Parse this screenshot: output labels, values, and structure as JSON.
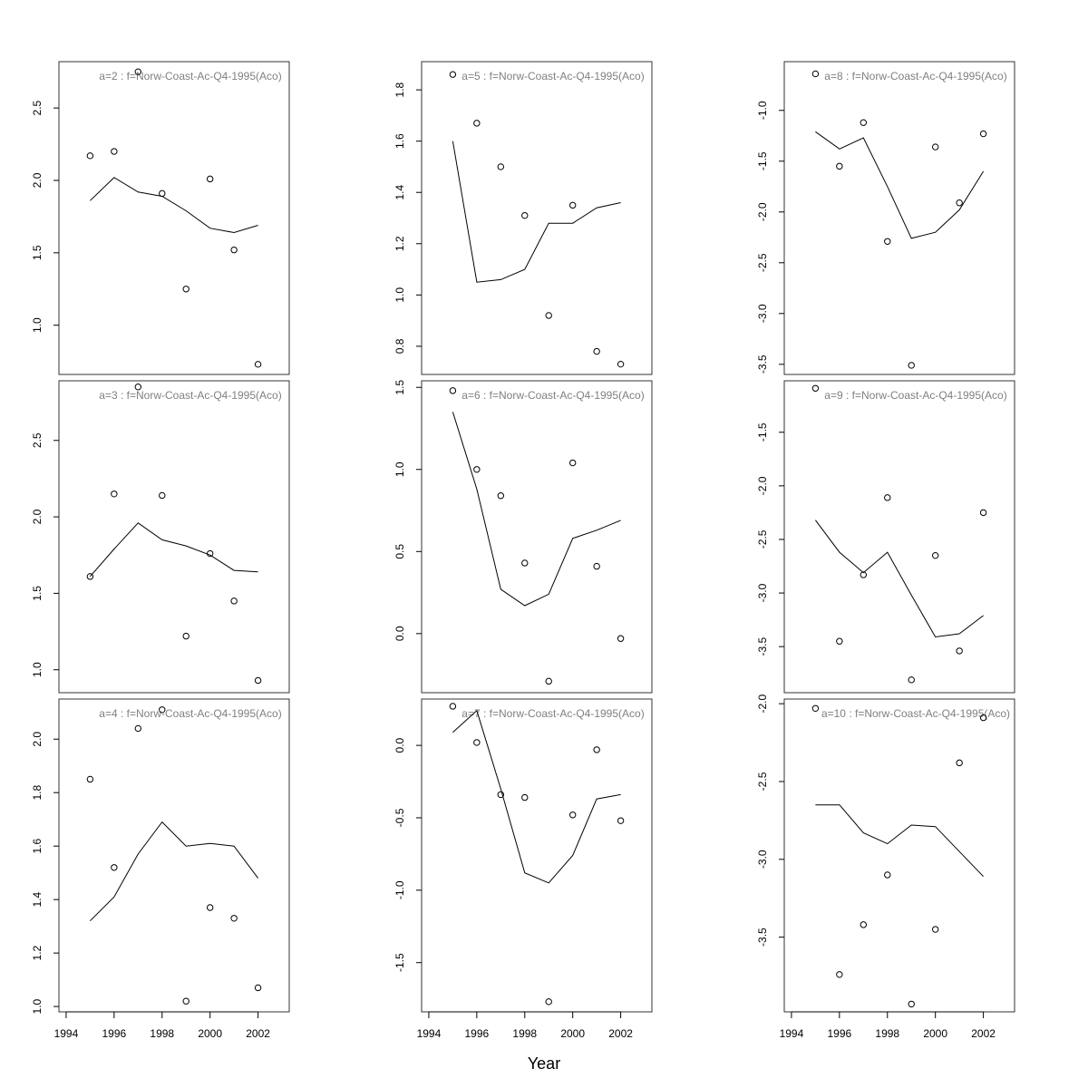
{
  "chart_data": {
    "type": "scatter",
    "layout": "3x3 panels, columns share x axis, panels in a column stacked without gaps",
    "xlabel": "Year",
    "x_ticks": [
      1994,
      1996,
      1998,
      2000,
      2002
    ],
    "x": [
      1995,
      1996,
      1997,
      1998,
      1999,
      2000,
      2001,
      2002
    ],
    "panels": [
      {
        "label": "a=2  :  f=Norw-Coast-Ac-Q4-1995(Aco)",
        "ylim": [
          0.66,
          2.82
        ],
        "y_ticks": [
          "1.0",
          "1.5",
          "2.0",
          "2.5"
        ],
        "points": [
          2.17,
          2.2,
          2.75,
          1.91,
          1.25,
          2.01,
          1.52,
          0.73
        ],
        "fitted": [
          1.86,
          2.02,
          1.92,
          1.89,
          1.79,
          1.67,
          1.64,
          1.69
        ]
      },
      {
        "label": "a=3  :  f=Norw-Coast-Ac-Q4-1995(Aco)",
        "ylim": [
          0.85,
          2.89
        ],
        "y_ticks": [
          "1.0",
          "1.5",
          "2.0",
          "2.5"
        ],
        "points": [
          1.61,
          2.15,
          2.85,
          2.14,
          1.22,
          1.76,
          1.45,
          0.93
        ],
        "fitted": [
          1.61,
          1.79,
          1.96,
          1.85,
          1.81,
          1.75,
          1.65,
          1.64
        ]
      },
      {
        "label": "a=4  :  f=Norw-Coast-Ac-Q4-1995(Aco)",
        "ylim": [
          0.98,
          2.15
        ],
        "y_ticks": [
          "1.0",
          "1.2",
          "1.4",
          "1.6",
          "1.8",
          "2.0"
        ],
        "points": [
          1.85,
          1.52,
          2.04,
          2.11,
          1.02,
          1.37,
          1.33,
          1.07
        ],
        "fitted": [
          1.32,
          1.41,
          1.57,
          1.69,
          1.6,
          1.61,
          1.6,
          1.48
        ]
      },
      {
        "label": "a=5  :  f=Norw-Coast-Ac-Q4-1995(Aco)",
        "ylim": [
          0.69,
          1.91
        ],
        "y_ticks": [
          "0.8",
          "1.0",
          "1.2",
          "1.4",
          "1.6",
          "1.8"
        ],
        "points": [
          1.86,
          1.67,
          1.5,
          1.31,
          0.92,
          1.35,
          0.78,
          0.73
        ],
        "fitted": [
          1.6,
          1.05,
          1.06,
          1.1,
          1.28,
          1.28,
          1.34,
          1.36
        ]
      },
      {
        "label": "a=6  :  f=Norw-Coast-Ac-Q4-1995(Aco)",
        "ylim": [
          -0.36,
          1.54
        ],
        "y_ticks": [
          "0.0",
          "0.5",
          "1.0",
          "1.5"
        ],
        "points": [
          1.48,
          1.0,
          0.84,
          0.43,
          -0.29,
          1.04,
          0.41,
          -0.03
        ],
        "fitted": [
          1.35,
          0.88,
          0.27,
          0.17,
          0.24,
          0.58,
          0.63,
          0.69
        ]
      },
      {
        "label": "a=7  :  f=Norw-Coast-Ac-Q4-1995(Aco)",
        "ylim": [
          -1.84,
          0.32
        ],
        "y_ticks": [
          "-1.5",
          "-1.0",
          "-0.5",
          "0.0"
        ],
        "points": [
          0.27,
          0.02,
          -0.34,
          -0.36,
          -1.77,
          -0.48,
          -0.03,
          -0.52
        ],
        "fitted": [
          0.09,
          0.24,
          -0.3,
          -0.88,
          -0.95,
          -0.76,
          -0.37,
          -0.34
        ]
      },
      {
        "label": "a=8  :  f=Norw-Coast-Ac-Q4-1995(Aco)",
        "ylim": [
          -3.6,
          -0.52
        ],
        "y_ticks": [
          "-3.5",
          "-3.0",
          "-2.5",
          "-2.0",
          "-1.5",
          "-1.0"
        ],
        "points": [
          -0.64,
          -1.55,
          -1.12,
          -2.29,
          -3.51,
          -1.36,
          -1.91,
          -1.23
        ],
        "fitted": [
          -1.21,
          -1.38,
          -1.27,
          -1.75,
          -2.26,
          -2.2,
          -1.98,
          -1.6
        ]
      },
      {
        "label": "a=9  :  f=Norw-Coast-Ac-Q4-1995(Aco)",
        "ylim": [
          -3.93,
          -1.02
        ],
        "y_ticks": [
          "-3.5",
          "-3.0",
          "-2.5",
          "-2.0",
          "-1.5"
        ],
        "points": [
          -1.09,
          -3.45,
          -2.83,
          -2.11,
          -3.81,
          -2.65,
          -3.54,
          -2.25
        ],
        "fitted": [
          -2.32,
          -2.62,
          -2.81,
          -2.62,
          -3.02,
          -3.41,
          -3.38,
          -3.21
        ]
      },
      {
        "label": "a=10  :  f=Norw-Coast-Ac-Q4-1995(Aco)",
        "ylim": [
          -3.98,
          -1.97
        ],
        "y_ticks": [
          "-3.5",
          "-3.0",
          "-2.5",
          "-2.0"
        ],
        "points": [
          -2.03,
          -3.74,
          -3.42,
          -3.1,
          -3.93,
          -3.45,
          -2.38,
          -2.09
        ],
        "fitted": [
          -2.65,
          -2.65,
          -2.83,
          -2.9,
          -2.78,
          -2.79,
          -2.95,
          -3.11
        ]
      }
    ]
  }
}
